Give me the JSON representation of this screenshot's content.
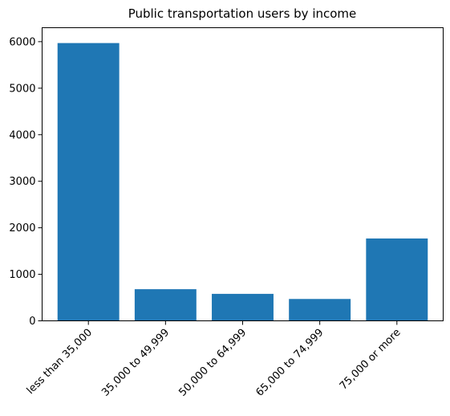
{
  "chart_data": {
    "type": "bar",
    "title": "Public transportation users by income",
    "xlabel": "",
    "ylabel": "",
    "categories": [
      "less than 35,000",
      "35,000 to 49,999",
      "50,000 to 64,999",
      "65,000 to 74,999",
      "75,000 or more"
    ],
    "values": [
      5970,
      680,
      580,
      470,
      1770
    ],
    "ylim": [
      0,
      6300
    ],
    "yticks": [
      0,
      1000,
      2000,
      3000,
      4000,
      5000,
      6000
    ],
    "bar_color": "#1f77b4",
    "grid": false,
    "legend": "none"
  }
}
